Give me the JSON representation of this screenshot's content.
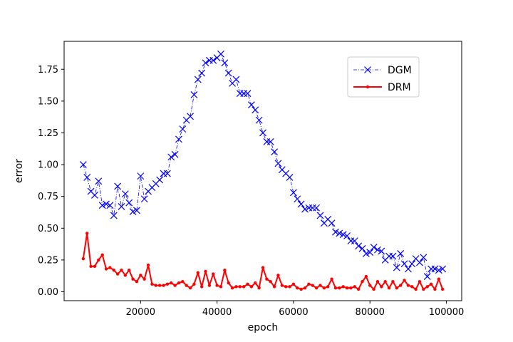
{
  "chart_data": {
    "type": "line",
    "xlabel": "epoch",
    "ylabel": "error",
    "xlim": [
      0,
      104000
    ],
    "ylim": [
      -0.07,
      1.97
    ],
    "xticks": [
      20000,
      40000,
      60000,
      80000,
      100000
    ],
    "xtick_labels": [
      "20000",
      "40000",
      "60000",
      "80000",
      "100000"
    ],
    "yticks": [
      0.0,
      0.25,
      0.5,
      0.75,
      1.0,
      1.25,
      1.5,
      1.75
    ],
    "ytick_labels": [
      "0.00",
      "0.25",
      "0.50",
      "0.75",
      "1.00",
      "1.25",
      "1.50",
      "1.75"
    ],
    "grid": false,
    "legend_position": "top-right",
    "series": [
      {
        "name": "DGM",
        "color": "#0000ff",
        "line_style": "dash-dot",
        "marker": "x",
        "x": [
          5000,
          6000,
          7000,
          8000,
          9000,
          10000,
          11000,
          12000,
          13000,
          14000,
          15000,
          16000,
          17000,
          18000,
          19000,
          20000,
          21000,
          22000,
          23000,
          24000,
          25000,
          26000,
          27000,
          28000,
          29000,
          30000,
          31000,
          32000,
          33000,
          34000,
          35000,
          36000,
          37000,
          38000,
          39000,
          40000,
          41000,
          42000,
          43000,
          44000,
          45000,
          46000,
          47000,
          48000,
          49000,
          50000,
          51000,
          52000,
          53000,
          54000,
          55000,
          56000,
          57000,
          58000,
          59000,
          60000,
          61000,
          62000,
          63000,
          64000,
          65000,
          66000,
          67000,
          68000,
          69000,
          70000,
          71000,
          72000,
          73000,
          74000,
          75000,
          76000,
          77000,
          78000,
          79000,
          80000,
          81000,
          82000,
          83000,
          84000,
          85000,
          86000,
          87000,
          88000,
          89000,
          90000,
          91000,
          92000,
          93000,
          94000,
          95000,
          96000,
          97000,
          98000,
          99000
        ],
        "y": [
          1.0,
          0.9,
          0.79,
          0.76,
          0.87,
          0.68,
          0.69,
          0.68,
          0.6,
          0.83,
          0.67,
          0.77,
          0.7,
          0.63,
          0.64,
          0.91,
          0.73,
          0.79,
          0.82,
          0.85,
          0.88,
          0.93,
          0.93,
          1.06,
          1.08,
          1.2,
          1.28,
          1.35,
          1.38,
          1.55,
          1.67,
          1.72,
          1.8,
          1.82,
          1.82,
          1.84,
          1.87,
          1.8,
          1.72,
          1.64,
          1.67,
          1.56,
          1.56,
          1.56,
          1.47,
          1.43,
          1.35,
          1.25,
          1.18,
          1.18,
          1.1,
          1.01,
          0.96,
          0.93,
          0.9,
          0.78,
          0.73,
          0.69,
          0.65,
          0.66,
          0.66,
          0.66,
          0.6,
          0.54,
          0.57,
          0.54,
          0.47,
          0.46,
          0.45,
          0.44,
          0.4,
          0.4,
          0.36,
          0.34,
          0.3,
          0.31,
          0.35,
          0.33,
          0.32,
          0.25,
          0.28,
          0.28,
          0.19,
          0.3,
          0.22,
          0.18,
          0.22,
          0.26,
          0.23,
          0.27,
          0.12,
          0.18,
          0.18,
          0.17,
          0.18
        ]
      },
      {
        "name": "DRM",
        "color": "#ff0000",
        "line_style": "solid",
        "marker": "o",
        "x": [
          5000,
          6000,
          7000,
          8000,
          9000,
          10000,
          11000,
          12000,
          13000,
          14000,
          15000,
          16000,
          17000,
          18000,
          19000,
          20000,
          21000,
          22000,
          23000,
          24000,
          25000,
          26000,
          27000,
          28000,
          29000,
          30000,
          31000,
          32000,
          33000,
          34000,
          35000,
          36000,
          37000,
          38000,
          39000,
          40000,
          41000,
          42000,
          43000,
          44000,
          45000,
          46000,
          47000,
          48000,
          49000,
          50000,
          51000,
          52000,
          53000,
          54000,
          55000,
          56000,
          57000,
          58000,
          59000,
          60000,
          61000,
          62000,
          63000,
          64000,
          65000,
          66000,
          67000,
          68000,
          69000,
          70000,
          71000,
          72000,
          73000,
          74000,
          75000,
          76000,
          77000,
          78000,
          79000,
          80000,
          81000,
          82000,
          83000,
          84000,
          85000,
          86000,
          87000,
          88000,
          89000,
          90000,
          91000,
          92000,
          93000,
          94000,
          95000,
          96000,
          97000,
          98000,
          99000
        ],
        "y": [
          0.26,
          0.46,
          0.2,
          0.2,
          0.25,
          0.29,
          0.18,
          0.19,
          0.17,
          0.14,
          0.17,
          0.13,
          0.17,
          0.1,
          0.08,
          0.13,
          0.1,
          0.21,
          0.06,
          0.05,
          0.05,
          0.05,
          0.06,
          0.07,
          0.05,
          0.07,
          0.08,
          0.05,
          0.03,
          0.06,
          0.15,
          0.04,
          0.16,
          0.05,
          0.14,
          0.05,
          0.04,
          0.17,
          0.07,
          0.03,
          0.04,
          0.04,
          0.04,
          0.06,
          0.04,
          0.07,
          0.03,
          0.19,
          0.1,
          0.08,
          0.04,
          0.13,
          0.05,
          0.04,
          0.04,
          0.06,
          0.03,
          0.02,
          0.03,
          0.06,
          0.05,
          0.03,
          0.05,
          0.03,
          0.04,
          0.1,
          0.03,
          0.03,
          0.04,
          0.03,
          0.03,
          0.04,
          0.02,
          0.08,
          0.12,
          0.05,
          0.02,
          0.08,
          0.04,
          0.08,
          0.03,
          0.08,
          0.03,
          0.05,
          0.09,
          0.05,
          0.04,
          0.02,
          0.08,
          0.02,
          0.04,
          0.06,
          0.02,
          0.1,
          0.02
        ]
      }
    ]
  }
}
